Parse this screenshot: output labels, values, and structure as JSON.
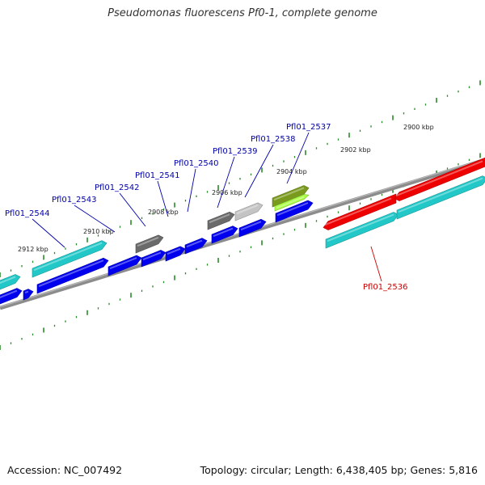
{
  "title": "Pseudomonas fluorescens Pf0-1, complete genome",
  "footer": {
    "accession": "Accession: NC_007492",
    "summary": "Topology: circular; Length: 6,438,405 bp; Genes: 5,816"
  },
  "colors": {
    "forward_cds": "#0000ee",
    "cyan_feature": "#22c8c8",
    "red_feature": "#ee0000",
    "gray_feature": "#6a6a6a",
    "lightgray_feature": "#c4c4c4",
    "olive_feature": "#7a9a1e",
    "lime_feature": "#aaff44",
    "backbone": "#8c8c8c",
    "tick": "#2a8a2a",
    "label_blue": "#0000aa",
    "label_red": "#cc0000"
  },
  "ruler_labels": [
    "2912 kbp",
    "2910 kbp",
    "2908 kbp",
    "2906 kbp",
    "2904 kbp",
    "2902 kbp",
    "2900 kbp"
  ],
  "gene_labels": [
    {
      "text": "Pfl01_2544",
      "color": "blue"
    },
    {
      "text": "Pfl01_2543",
      "color": "blue"
    },
    {
      "text": "Pfl01_2542",
      "color": "blue"
    },
    {
      "text": "Pfl01_2541",
      "color": "blue"
    },
    {
      "text": "Pfl01_2540",
      "color": "blue"
    },
    {
      "text": "Pfl01_2539",
      "color": "blue"
    },
    {
      "text": "Pfl01_2538",
      "color": "blue"
    },
    {
      "text": "Pfl01_2537",
      "color": "blue"
    },
    {
      "text": "Pfl01_2536",
      "color": "red"
    }
  ]
}
